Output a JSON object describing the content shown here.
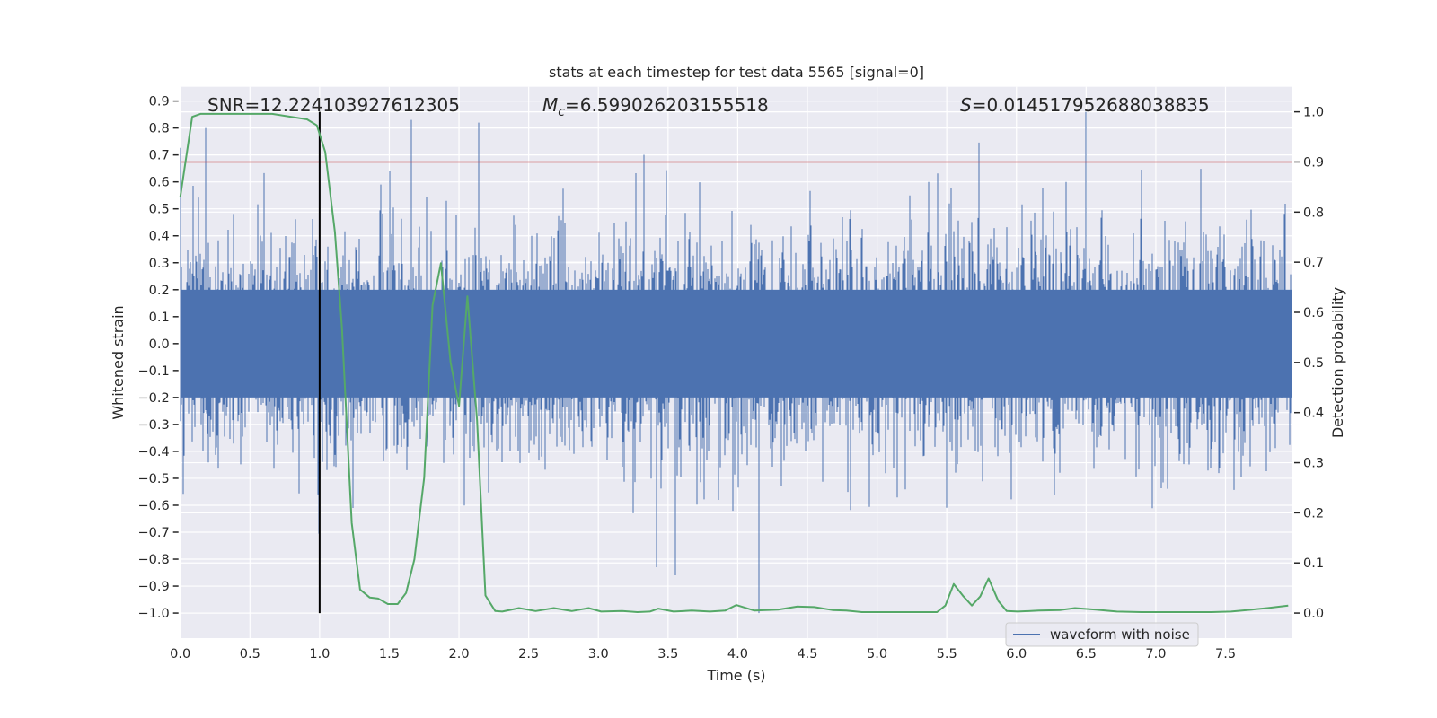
{
  "chart_data": {
    "type": "line",
    "title": "stats at each timestep for test data 5565 [signal=0]",
    "xlabel": "Time (s)",
    "ylabel_left": "Whitened strain",
    "ylabel_right": "Detection probability",
    "xlim": [
      0,
      7.98
    ],
    "ylim_left": [
      -1.093,
      0.953
    ],
    "ylim_right": [
      -0.05,
      1.05
    ],
    "grid": true,
    "x_ticks": [
      "0.0",
      "0.5",
      "1.0",
      "1.5",
      "2.0",
      "2.5",
      "3.0",
      "3.5",
      "4.0",
      "4.5",
      "5.0",
      "5.5",
      "6.0",
      "6.5",
      "7.0",
      "7.5"
    ],
    "left_ticks": [
      "0.9",
      "0.8",
      "0.7",
      "0.6",
      "0.5",
      "0.4",
      "0.3",
      "0.2",
      "0.1",
      "0.0",
      "−0.1",
      "−0.2",
      "−0.3",
      "−0.4",
      "−0.5",
      "−0.6",
      "−0.7",
      "−0.8",
      "−0.9",
      "−1.0"
    ],
    "right_ticks": [
      "1.0",
      "0.9",
      "0.8",
      "0.7",
      "0.6",
      "0.5",
      "0.4",
      "0.3",
      "0.2",
      "0.1",
      "0.0"
    ],
    "annotations": {
      "snr": "SNR=12.224103927612305",
      "mc_symbol": "M",
      "mc_sub": "c",
      "mc_value": "=6.599026203155518",
      "s_symbol": "S",
      "s_value": "=0.014517952688038835"
    },
    "legend": {
      "placement": "lower-right",
      "entries": [
        "waveform with noise"
      ]
    },
    "series": [
      {
        "name": "waveform with noise",
        "axis": "left",
        "color": "#4c72b0",
        "description_values": {
          "duration_s": 8,
          "typical_band": [
            -0.3,
            0.3
          ],
          "max": 0.86,
          "min": -1.0
        },
        "notable_extremes": [
          {
            "t": 6.5,
            "y": 0.86
          },
          {
            "t": 1.66,
            "y": 0.83
          },
          {
            "t": 2.14,
            "y": 0.82
          },
          {
            "t": 4.15,
            "y": -1.0
          },
          {
            "t": 3.55,
            "y": -0.86
          },
          {
            "t": 3.42,
            "y": -0.83
          }
        ]
      },
      {
        "name": "detection probability",
        "axis": "right",
        "color": "#55a868",
        "x": [
          0.0,
          0.086,
          0.145,
          0.66,
          0.91,
          0.98,
          1.04,
          1.11,
          1.16,
          1.23,
          1.29,
          1.36,
          1.42,
          1.49,
          1.56,
          1.62,
          1.68,
          1.75,
          1.81,
          1.87,
          1.94,
          2.0,
          2.06,
          2.13,
          2.19,
          2.26,
          2.31,
          2.43,
          2.55,
          2.68,
          2.81,
          2.93,
          3.02,
          3.17,
          3.28,
          3.37,
          3.43,
          3.54,
          3.67,
          3.8,
          3.91,
          3.99,
          4.12,
          4.29,
          4.43,
          4.55,
          4.68,
          4.78,
          4.89,
          5.1,
          5.3,
          5.43,
          5.49,
          5.55,
          5.62,
          5.68,
          5.74,
          5.8,
          5.87,
          5.93,
          6.01,
          6.16,
          6.31,
          6.42,
          6.57,
          6.72,
          6.9,
          7.17,
          7.4,
          7.54,
          7.69,
          7.8,
          7.95
        ],
        "y": [
          0.83,
          0.99,
          0.996,
          0.996,
          0.985,
          0.973,
          0.92,
          0.76,
          0.57,
          0.18,
          0.047,
          0.031,
          0.029,
          0.018,
          0.018,
          0.04,
          0.107,
          0.27,
          0.614,
          0.698,
          0.5,
          0.413,
          0.632,
          0.384,
          0.035,
          0.004,
          0.003,
          0.01,
          0.004,
          0.01,
          0.004,
          0.01,
          0.003,
          0.004,
          0.002,
          0.003,
          0.009,
          0.003,
          0.005,
          0.003,
          0.005,
          0.016,
          0.005,
          0.007,
          0.013,
          0.012,
          0.006,
          0.005,
          0.002,
          0.002,
          0.002,
          0.002,
          0.015,
          0.058,
          0.033,
          0.015,
          0.033,
          0.069,
          0.024,
          0.004,
          0.003,
          0.005,
          0.006,
          0.01,
          0.007,
          0.003,
          0.002,
          0.002,
          0.002,
          0.003,
          0.007,
          0.01,
          0.015
        ]
      }
    ],
    "threshold": {
      "axis": "right",
      "value": 0.9,
      "color": "#c44e52"
    },
    "event_marker": {
      "axis": "right",
      "t": 1.0,
      "y_range": [
        0,
        1
      ],
      "color": "#000000"
    }
  }
}
